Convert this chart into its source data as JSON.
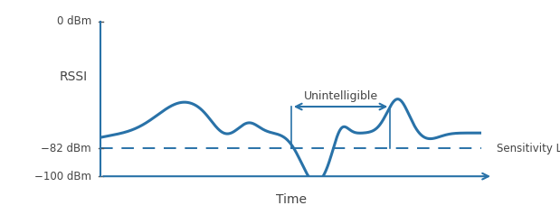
{
  "ylabel": "RSSI",
  "xlabel": "Time",
  "ylim": [
    -100,
    0
  ],
  "xlim": [
    0,
    10
  ],
  "sensitivity_level": -82,
  "sensitivity_label": "Sensitivity Level",
  "sensitivity_dBm_label": "−82 dBm",
  "top_label": "0 dBm",
  "bottom_label": "−100 dBm",
  "unintelligible_label": "Unintelligible",
  "signal_color": "#2972A8",
  "sensitivity_color": "#2972A8",
  "axis_color": "#2972A8",
  "text_color": "#444444",
  "line_width": 2.2,
  "unintelligible_x_start": 5.0,
  "unintelligible_x_end": 7.6,
  "background_color": "#ffffff"
}
